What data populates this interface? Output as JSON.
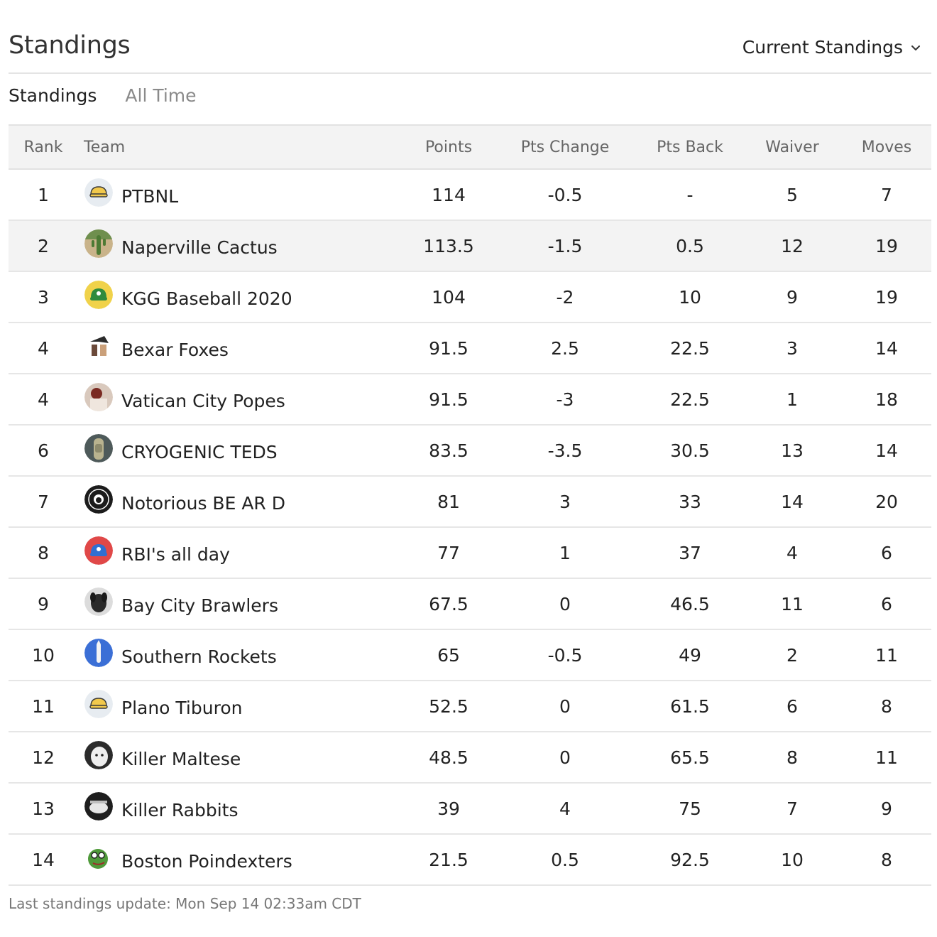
{
  "header": {
    "title": "Standings",
    "view_select": "Current Standings"
  },
  "tabs": [
    {
      "label": "Standings",
      "active": true
    },
    {
      "label": "All Time",
      "active": false
    }
  ],
  "table": {
    "columns": [
      "Rank",
      "Team",
      "Points",
      "Pts Change",
      "Pts Back",
      "Waiver",
      "Moves"
    ],
    "rows": [
      {
        "rank": "1",
        "team": "PTBNL",
        "points": "114",
        "change": "-0.5",
        "back": "-",
        "waiver": "5",
        "moves": "7",
        "logo": "yellow-cap-logo-icon"
      },
      {
        "rank": "2",
        "team": "Naperville Cactus",
        "points": "113.5",
        "change": "-1.5",
        "back": "0.5",
        "waiver": "12",
        "moves": "19",
        "logo": "cactus-logo-icon"
      },
      {
        "rank": "3",
        "team": "KGG Baseball 2020",
        "points": "104",
        "change": "-2",
        "back": "10",
        "waiver": "9",
        "moves": "19",
        "logo": "green-cap-logo-icon"
      },
      {
        "rank": "4",
        "team": "Bexar Foxes",
        "points": "91.5",
        "change": "2.5",
        "back": "22.5",
        "waiver": "3",
        "moves": "14",
        "logo": "foxes-logo-icon"
      },
      {
        "rank": "4",
        "team": "Vatican City Popes",
        "points": "91.5",
        "change": "-3",
        "back": "22.5",
        "waiver": "1",
        "moves": "18",
        "logo": "popes-logo-icon"
      },
      {
        "rank": "6",
        "team": "CRYOGENIC TEDS",
        "points": "83.5",
        "change": "-3.5",
        "back": "30.5",
        "waiver": "13",
        "moves": "14",
        "logo": "cryo-logo-icon"
      },
      {
        "rank": "7",
        "team": "Notorious BE AR D",
        "points": "81",
        "change": "3",
        "back": "33",
        "waiver": "14",
        "moves": "20",
        "logo": "bear-badge-logo-icon"
      },
      {
        "rank": "8",
        "team": "RBI's all day",
        "points": "77",
        "change": "1",
        "back": "37",
        "waiver": "4",
        "moves": "6",
        "logo": "blue-cap-logo-icon"
      },
      {
        "rank": "9",
        "team": "Bay City Brawlers",
        "points": "67.5",
        "change": "0",
        "back": "46.5",
        "waiver": "11",
        "moves": "6",
        "logo": "dog-logo-icon"
      },
      {
        "rank": "10",
        "team": "Southern Rockets",
        "points": "65",
        "change": "-0.5",
        "back": "49",
        "waiver": "2",
        "moves": "11",
        "logo": "rocket-logo-icon"
      },
      {
        "rank": "11",
        "team": "Plano Tiburon",
        "points": "52.5",
        "change": "0",
        "back": "61.5",
        "waiver": "6",
        "moves": "8",
        "logo": "yellow-cap-logo-icon"
      },
      {
        "rank": "12",
        "team": "Killer Maltese",
        "points": "48.5",
        "change": "0",
        "back": "65.5",
        "waiver": "8",
        "moves": "11",
        "logo": "maltese-logo-icon"
      },
      {
        "rank": "13",
        "team": "Killer Rabbits",
        "points": "39",
        "change": "4",
        "back": "75",
        "waiver": "7",
        "moves": "9",
        "logo": "rabbits-logo-icon"
      },
      {
        "rank": "14",
        "team": "Boston Poindexters",
        "points": "21.5",
        "change": "0.5",
        "back": "92.5",
        "waiver": "10",
        "moves": "8",
        "logo": "poindexter-logo-icon"
      }
    ]
  },
  "footer": {
    "text": "Last standings update: Mon Sep 14 02:33am CDT"
  },
  "colors": {
    "negative": "#d0302b",
    "positive": "#3aa34a",
    "highlight_row": "#f3f3f3"
  }
}
